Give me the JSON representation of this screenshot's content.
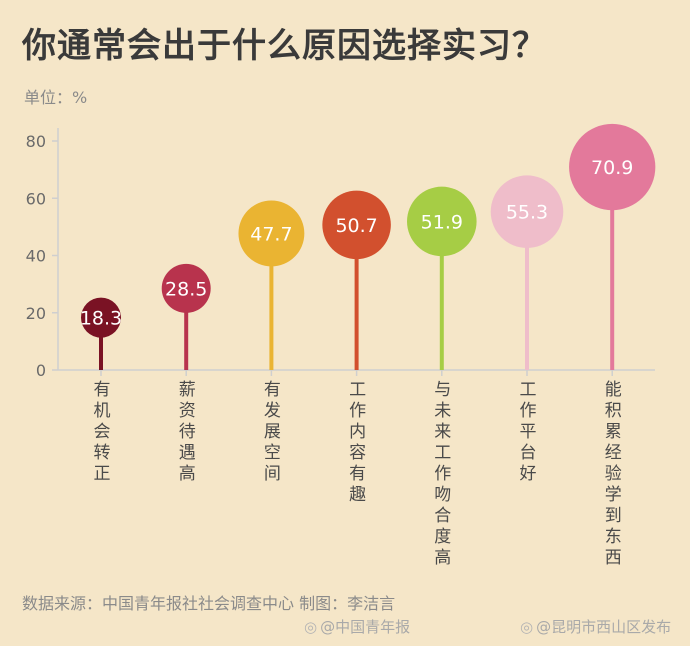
{
  "chart_data": {
    "type": "lollipop",
    "title": "你通常会出于什么原因选择实习？",
    "unit_label": "单位：%",
    "ylim": [
      0,
      80
    ],
    "yticks": [
      0,
      20,
      40,
      60,
      80
    ],
    "grid": false,
    "categories": [
      "有机会转正",
      "薪资待遇高",
      "有发展空间",
      "工作内容有趣",
      "与未来工作吻合度高",
      "工作平台好",
      "能积累经验学到东西"
    ],
    "values": [
      18.3,
      28.5,
      47.7,
      50.7,
      51.9,
      55.3,
      70.9
    ],
    "value_labels": [
      "18.3",
      "28.5",
      "47.7",
      "50.7",
      "51.9",
      "55.3",
      "70.9"
    ],
    "colors": [
      "#7a1224",
      "#b8334d",
      "#eab432",
      "#d2502e",
      "#a6cd45",
      "#efbdca",
      "#e3799b"
    ]
  },
  "source": "数据来源：中国青年报社社会调查中心 制图：李洁言",
  "watermarks": [
    {
      "icon": "weibo-icon",
      "text": "@中国青年报"
    },
    {
      "icon": "weibo-icon",
      "text": "@昆明市西山区发布"
    }
  ]
}
